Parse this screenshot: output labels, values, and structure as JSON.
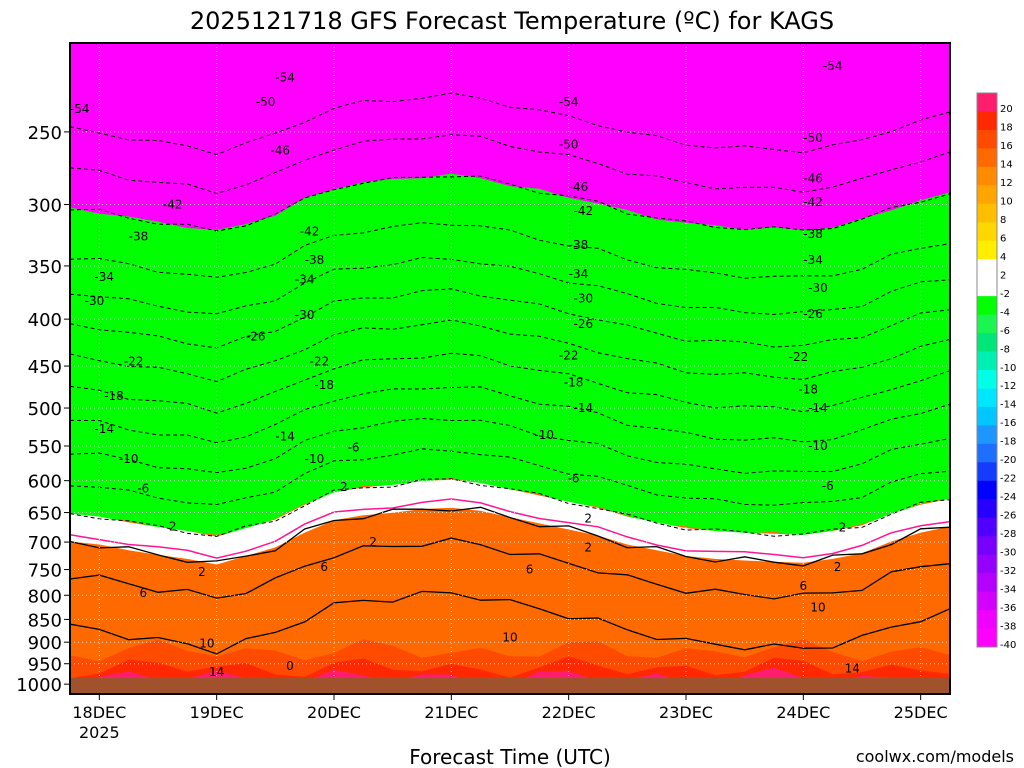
{
  "title": "2025121718 GFS Forecast Temperature (ºC) for KAGS",
  "xlabel": "Forecast Time (UTC)",
  "credit": "coolwx.com/models",
  "colors": {
    "ground": "#a0522d",
    "freezing_line": "#ff1493",
    "text_credit": "#e03030"
  },
  "chart_data": {
    "type": "heatmap",
    "title": "2025121718 GFS Forecast Temperature (ºC) for KAGS",
    "xlabel": "Forecast Time (UTC)",
    "ylabel": "",
    "x_ticks": [
      {
        "label": "18DEC",
        "sub": "2025",
        "hour": 6
      },
      {
        "label": "19DEC",
        "sub": "",
        "hour": 30
      },
      {
        "label": "20DEC",
        "sub": "",
        "hour": 54
      },
      {
        "label": "21DEC",
        "sub": "",
        "hour": 78
      },
      {
        "label": "22DEC",
        "sub": "",
        "hour": 102
      },
      {
        "label": "23DEC",
        "sub": "",
        "hour": 126
      },
      {
        "label": "24DEC",
        "sub": "",
        "hour": 150
      },
      {
        "label": "25DEC",
        "sub": "",
        "hour": 174
      }
    ],
    "x_range_hours": [
      0,
      180
    ],
    "y_ticks": [
      "250",
      "300",
      "350",
      "400",
      "450",
      "500",
      "550",
      "600",
      "650",
      "700",
      "750",
      "800",
      "850",
      "900",
      "950",
      "1000"
    ],
    "y_range_hpa": [
      200,
      1025
    ],
    "y_scale": "log",
    "colorbar": {
      "labels": [
        "20",
        "18",
        "16",
        "14",
        "12",
        "10",
        "8",
        "6",
        "4",
        "2",
        "-2",
        "-4",
        "-6",
        "-8",
        "-10",
        "-12",
        "-14",
        "-16",
        "-18",
        "-20",
        "-22",
        "-24",
        "-26",
        "-28",
        "-30",
        "-32",
        "-34",
        "-36",
        "-38",
        "-40"
      ],
      "colors": [
        "#ff1e6e",
        "#ff2800",
        "#ff4b00",
        "#ff6a00",
        "#ff8c00",
        "#ffa500",
        "#ffbe00",
        "#ffd700",
        "#ffee00",
        "#ffffff",
        "#ffffff",
        "#00ff00",
        "#1bf550",
        "#00e678",
        "#00f0b4",
        "#00ffe6",
        "#00e6ff",
        "#00c8ff",
        "#1e96ff",
        "#1e6eff",
        "#143cff",
        "#0000ff",
        "#2800ff",
        "#5000ff",
        "#7800ff",
        "#9600ff",
        "#b400ff",
        "#d200ff",
        "#f000ff",
        "#ff00ff"
      ]
    },
    "isotherm_profile": {
      "hours": [
        0,
        6,
        12,
        18,
        24,
        30,
        36,
        42,
        48,
        54,
        60,
        66,
        72,
        78,
        84,
        90,
        96,
        102,
        108,
        114,
        120,
        126,
        132,
        138,
        144,
        150,
        156,
        162,
        168,
        174,
        180
      ],
      "freezing_level_hpa": [
        675,
        680,
        690,
        698,
        705,
        715,
        700,
        685,
        660,
        640,
        632,
        628,
        622,
        620,
        625,
        635,
        645,
        655,
        665,
        680,
        690,
        700,
        705,
        708,
        710,
        712,
        705,
        695,
        675,
        660,
        650
      ]
    },
    "contour_labels": [
      {
        "text": "-54",
        "hour": 2,
        "hpa": 236
      },
      {
        "text": "-54",
        "hour": 44,
        "hpa": 218
      },
      {
        "text": "-54",
        "hour": 102,
        "hpa": 232
      },
      {
        "text": "-54",
        "hour": 156,
        "hpa": 212
      },
      {
        "text": "-50",
        "hour": 40,
        "hpa": 232
      },
      {
        "text": "-50",
        "hour": 102,
        "hpa": 258
      },
      {
        "text": "-50",
        "hour": 152,
        "hpa": 254
      },
      {
        "text": "-46",
        "hour": 43,
        "hpa": 262
      },
      {
        "text": "-46",
        "hour": 104,
        "hpa": 287
      },
      {
        "text": "-46",
        "hour": 152,
        "hpa": 281
      },
      {
        "text": "-42",
        "hour": 21,
        "hpa": 300
      },
      {
        "text": "-42",
        "hour": 49,
        "hpa": 321
      },
      {
        "text": "-42",
        "hour": 105,
        "hpa": 305
      },
      {
        "text": "-42",
        "hour": 152,
        "hpa": 298
      },
      {
        "text": "-38",
        "hour": 14,
        "hpa": 325
      },
      {
        "text": "-38",
        "hour": 50,
        "hpa": 345
      },
      {
        "text": "-38",
        "hour": 104,
        "hpa": 332
      },
      {
        "text": "-38",
        "hour": 152,
        "hpa": 323
      },
      {
        "text": "-34",
        "hour": 7,
        "hpa": 360
      },
      {
        "text": "-34",
        "hour": 48,
        "hpa": 362
      },
      {
        "text": "-34",
        "hour": 104,
        "hpa": 357
      },
      {
        "text": "-34",
        "hour": 152,
        "hpa": 345
      },
      {
        "text": "-30",
        "hour": 5,
        "hpa": 382
      },
      {
        "text": "-30",
        "hour": 48,
        "hpa": 396
      },
      {
        "text": "-30",
        "hour": 105,
        "hpa": 380
      },
      {
        "text": "-30",
        "hour": 153,
        "hpa": 370
      },
      {
        "text": "-26",
        "hour": 38,
        "hpa": 418
      },
      {
        "text": "-26",
        "hour": 105,
        "hpa": 405
      },
      {
        "text": "-26",
        "hour": 152,
        "hpa": 395
      },
      {
        "text": "-22",
        "hour": 13,
        "hpa": 445
      },
      {
        "text": "-22",
        "hour": 51,
        "hpa": 445
      },
      {
        "text": "-22",
        "hour": 102,
        "hpa": 438
      },
      {
        "text": "-22",
        "hour": 149,
        "hpa": 440
      },
      {
        "text": "-18",
        "hour": 9,
        "hpa": 485
      },
      {
        "text": "-18",
        "hour": 52,
        "hpa": 472
      },
      {
        "text": "-18",
        "hour": 103,
        "hpa": 469
      },
      {
        "text": "-18",
        "hour": 151,
        "hpa": 477
      },
      {
        "text": "-14",
        "hour": 7,
        "hpa": 527
      },
      {
        "text": "-14",
        "hour": 44,
        "hpa": 537
      },
      {
        "text": "-14",
        "hour": 105,
        "hpa": 500
      },
      {
        "text": "-14",
        "hour": 153,
        "hpa": 500
      },
      {
        "text": "-10",
        "hour": 12,
        "hpa": 568
      },
      {
        "text": "-10",
        "hour": 50,
        "hpa": 568
      },
      {
        "text": "-10",
        "hour": 97,
        "hpa": 535
      },
      {
        "text": "-10",
        "hour": 153,
        "hpa": 550
      },
      {
        "text": "-6",
        "hour": 15,
        "hpa": 612
      },
      {
        "text": "-6",
        "hour": 58,
        "hpa": 552
      },
      {
        "text": "-6",
        "hour": 103,
        "hpa": 597
      },
      {
        "text": "-6",
        "hour": 155,
        "hpa": 608
      },
      {
        "text": "2",
        "hour": 56,
        "hpa": 610
      },
      {
        "text": "2",
        "hour": 21,
        "hpa": 673
      },
      {
        "text": "2",
        "hour": 106,
        "hpa": 660
      },
      {
        "text": "2",
        "hour": 158,
        "hpa": 675
      },
      {
        "text": "2",
        "hour": 62,
        "hpa": 700
      },
      {
        "text": "2",
        "hour": 106,
        "hpa": 710
      },
      {
        "text": "2",
        "hour": 157,
        "hpa": 745
      },
      {
        "text": "2",
        "hour": 27,
        "hpa": 755
      },
      {
        "text": "6",
        "hour": 15,
        "hpa": 795
      },
      {
        "text": "6",
        "hour": 52,
        "hpa": 745
      },
      {
        "text": "6",
        "hour": 94,
        "hpa": 750
      },
      {
        "text": "6",
        "hour": 150,
        "hpa": 782
      },
      {
        "text": "10",
        "hour": 28,
        "hpa": 903
      },
      {
        "text": "10",
        "hour": 90,
        "hpa": 890
      },
      {
        "text": "10",
        "hour": 153,
        "hpa": 825
      },
      {
        "text": "14",
        "hour": 30,
        "hpa": 970
      },
      {
        "text": "14",
        "hour": 160,
        "hpa": 962
      },
      {
        "text": "0",
        "hour": 45,
        "hpa": 955
      }
    ]
  }
}
